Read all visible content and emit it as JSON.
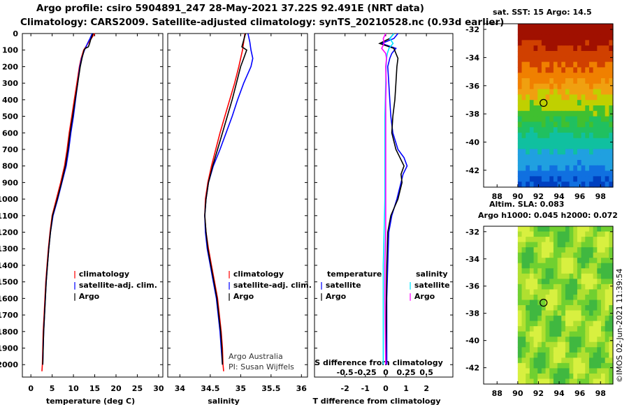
{
  "header": {
    "line1": "Argo profile: csiro 5904891_247 28-May-2021 37.22S 92.491E (NRT data)",
    "line2": "Climatology: CARS2009. Satellite-adjusted climatology: synTS_20210528.nc (0.93d earlier)"
  },
  "colors": {
    "climatology": "#ff0000",
    "satellite": "#0000ff",
    "argo": "#000000",
    "sat_salinity": "#00e5ff",
    "argo_salinity": "#ff00ff",
    "grid": "#999999"
  },
  "chart_data": [
    {
      "type": "line",
      "title": "",
      "xlabel": "temperature (deg C)",
      "ylabel": "",
      "xlim": [
        -2,
        31
      ],
      "ylim": [
        2075,
        0
      ],
      "x_ticks": [
        "0",
        "5",
        "10",
        "15",
        "20",
        "25",
        "30"
      ],
      "y_ticks": [
        "0",
        "100",
        "200",
        "300",
        "400",
        "500",
        "600",
        "700",
        "800",
        "900",
        "1000",
        "1100",
        "1200",
        "1300",
        "1400",
        "1500",
        "1600",
        "1700",
        "1800",
        "1900",
        "2000"
      ],
      "legend": [
        "climatology",
        "satellite-adj. clim.",
        "Argo"
      ],
      "series": [
        {
          "name": "climatology",
          "depth": [
            0,
            30,
            60,
            100,
            150,
            200,
            300,
            400,
            500,
            600,
            700,
            800,
            900,
            1000,
            1100,
            1200,
            1300,
            1400,
            1500,
            1600,
            1700,
            1800,
            1900,
            2000,
            2040
          ],
          "values": [
            15,
            14.2,
            13.4,
            12.4,
            11.8,
            11.4,
            10.8,
            10.2,
            9.6,
            9.0,
            8.5,
            7.9,
            7.0,
            6.0,
            5.0,
            4.5,
            4.1,
            3.8,
            3.5,
            3.3,
            3.1,
            2.9,
            2.8,
            2.7,
            2.6
          ]
        },
        {
          "name": "satellite-adj. clim.",
          "depth": [
            0,
            30,
            60,
            100,
            150,
            200,
            300,
            400,
            500,
            600,
            700,
            800,
            900,
            1000,
            1100,
            1200,
            1300,
            1400,
            1500,
            1600,
            1700,
            1800,
            1900,
            2000
          ],
          "values": [
            14.4,
            13.9,
            13.3,
            12.6,
            11.9,
            11.5,
            11.0,
            10.5,
            10.0,
            9.4,
            8.9,
            8.3,
            7.3,
            6.3,
            5.2,
            4.6,
            4.2,
            3.9,
            3.6,
            3.4,
            3.2,
            3.0,
            2.9,
            2.8
          ]
        },
        {
          "name": "Argo",
          "depth": [
            0,
            20,
            40,
            60,
            80,
            90,
            100,
            150,
            200,
            300,
            400,
            500,
            600,
            700,
            800,
            900,
            1000,
            1100,
            1200,
            1300,
            1400,
            1500,
            1600,
            1700,
            1800,
            1900,
            2000
          ],
          "values": [
            14.6,
            14.3,
            14.0,
            13.8,
            13.5,
            12.8,
            12.5,
            12.0,
            11.6,
            11.0,
            10.4,
            9.8,
            9.2,
            8.7,
            8.1,
            7.2,
            6.2,
            5.1,
            4.6,
            4.2,
            3.9,
            3.6,
            3.4,
            3.2,
            3.0,
            2.9,
            2.8
          ]
        }
      ]
    },
    {
      "type": "line",
      "title": "",
      "xlabel": "salinity",
      "ylabel": "",
      "xlim": [
        33.8,
        36.1
      ],
      "ylim": [
        2075,
        0
      ],
      "x_ticks": [
        "34",
        "34.5",
        "35",
        "35.5",
        "36"
      ],
      "y_ticks": [],
      "legend": [
        "climatology",
        "satellite-adj. clim.",
        "Argo"
      ],
      "series": [
        {
          "name": "climatology",
          "depth": [
            0,
            50,
            100,
            200,
            300,
            400,
            500,
            600,
            700,
            800,
            900,
            1000,
            1100,
            1200,
            1300,
            1400,
            1500,
            1600,
            1700,
            1800,
            1900,
            2000,
            2040
          ],
          "values": [
            35.07,
            35.05,
            35.03,
            34.97,
            34.9,
            34.82,
            34.74,
            34.66,
            34.59,
            34.52,
            34.46,
            34.42,
            34.41,
            34.43,
            34.47,
            34.52,
            34.57,
            34.62,
            34.65,
            34.68,
            34.7,
            34.71,
            34.72
          ]
        },
        {
          "name": "satellite-adj. clim.",
          "depth": [
            0,
            50,
            100,
            150,
            200,
            300,
            400,
            500,
            600,
            700,
            800,
            900,
            1000,
            1100,
            1200,
            1300,
            1400,
            1500,
            1600,
            1700,
            1800,
            1900,
            2000
          ],
          "values": [
            35.12,
            35.15,
            35.17,
            35.2,
            35.17,
            35.05,
            34.95,
            34.86,
            34.76,
            34.66,
            34.55,
            34.47,
            34.43,
            34.41,
            34.42,
            34.45,
            34.5,
            34.55,
            34.6,
            34.63,
            34.66,
            34.68,
            34.7
          ]
        },
        {
          "name": "Argo",
          "depth": [
            0,
            40,
            80,
            100,
            150,
            200,
            300,
            400,
            500,
            600,
            700,
            800,
            900,
            1000,
            1100,
            1200,
            1300,
            1400,
            1500,
            1600,
            1700,
            1800,
            1900,
            2000
          ],
          "values": [
            35.08,
            35.05,
            35.02,
            35.1,
            35.05,
            35.0,
            34.93,
            34.86,
            34.78,
            34.7,
            34.62,
            34.54,
            34.47,
            34.43,
            34.41,
            34.43,
            34.46,
            34.51,
            34.56,
            34.61,
            34.64,
            34.67,
            34.69,
            34.7
          ]
        }
      ]
    },
    {
      "type": "line",
      "title": "",
      "xlabel": "T difference from climatology",
      "ylabel": "",
      "xlim": [
        -3.5,
        3.3
      ],
      "ylim": [
        2075,
        0
      ],
      "x_ticks": [
        "-2",
        "-1",
        "0",
        "1",
        "2"
      ],
      "x2_label": "S difference from climatology",
      "x2_ticks": [
        "-0.5",
        "-0.25",
        "0",
        "0.25",
        "0.5"
      ],
      "legend_temperature_title": "temperature",
      "legend_salinity_title": "salinity",
      "legend_temperature": [
        "satellite",
        "Argo"
      ],
      "legend_salinity": [
        "satellite",
        "Argo"
      ],
      "series": [
        {
          "name": "T satellite",
          "depth": [
            0,
            30,
            60,
            90,
            120,
            150,
            200,
            300,
            400,
            500,
            600,
            700,
            750,
            800,
            850,
            900,
            950,
            1000,
            1100,
            1200,
            1400,
            1600,
            1800,
            2000
          ],
          "values": [
            0.6,
            0.4,
            -0.2,
            0.5,
            0.3,
            0.2,
            0.1,
            0.15,
            0.2,
            0.25,
            0.35,
            0.6,
            0.9,
            1.05,
            0.85,
            0.75,
            0.65,
            0.55,
            0.3,
            0.15,
            0.1,
            0.05,
            0.05,
            0.05
          ]
        },
        {
          "name": "T Argo",
          "depth": [
            0,
            30,
            60,
            90,
            120,
            150,
            200,
            300,
            400,
            500,
            600,
            700,
            750,
            800,
            850,
            900,
            950,
            1000,
            1100,
            1200,
            1400,
            1600,
            1800,
            2000
          ],
          "values": [
            0.4,
            0.2,
            -0.3,
            0.4,
            0.5,
            0.6,
            0.55,
            0.5,
            0.45,
            0.35,
            0.3,
            0.5,
            0.7,
            0.9,
            0.75,
            0.8,
            0.7,
            0.6,
            0.25,
            0.1,
            0.05,
            0.03,
            0.02,
            0.0
          ]
        },
        {
          "name": "S satellite",
          "depth": [
            0,
            30,
            60,
            90,
            120,
            150,
            200,
            300,
            400,
            500,
            600,
            800,
            1000,
            1200,
            1400,
            1600,
            1800,
            2000
          ],
          "values": [
            0.1,
            0.05,
            0.09,
            0.04,
            0.02,
            0.01,
            0.005,
            0.0,
            -0.005,
            -0.01,
            -0.01,
            -0.01,
            -0.01,
            -0.02,
            -0.03,
            -0.03,
            -0.03,
            -0.03
          ]
        },
        {
          "name": "S Argo",
          "depth": [
            0,
            30,
            60,
            90,
            120,
            150,
            200,
            300,
            400,
            500,
            600,
            800,
            1000,
            1200,
            1400,
            1600,
            1800,
            2000
          ],
          "values": [
            0.0,
            -0.03,
            -0.02,
            -0.05,
            0.0,
            0.01,
            0.0,
            0.005,
            0.0,
            0.0,
            0.0,
            0.0,
            0.0,
            0.0,
            -0.01,
            -0.01,
            -0.005,
            0.0
          ]
        }
      ]
    }
  ],
  "maps": {
    "sst_title": "sat. SST: 15 Argo: 14.5",
    "sla_title_1": "Altim. SLA: 0.083",
    "sla_title_2": "Argo h1000: 0.045 h2000: 0.072",
    "lat_ticks": [
      "-32",
      "-34",
      "-36",
      "-38",
      "-40",
      "-42"
    ],
    "lon_ticks": [
      "88",
      "90",
      "92",
      "94",
      "96",
      "98"
    ],
    "argo_position": {
      "lat": -37.22,
      "lon": 92.491
    }
  },
  "footer": {
    "credit_1": "Argo Australia",
    "credit_2": "PI: Susan Wijffels",
    "watermark": "©IMOS 02-Jun-2021 11:39:54"
  }
}
